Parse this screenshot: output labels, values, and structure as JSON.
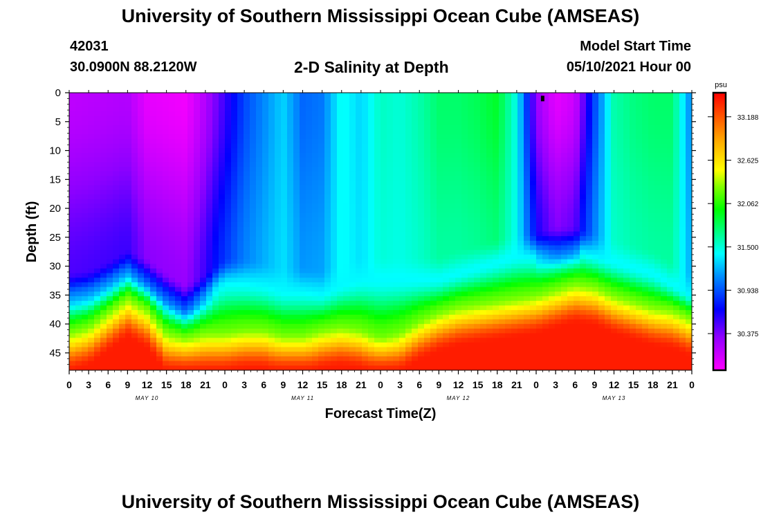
{
  "header": {
    "title": "University of Southern Mississippi Ocean Cube (AMSEAS)",
    "station_id": "42031",
    "location": "30.0900N  88.2120W",
    "plot_title": "2-D Salinity at Depth",
    "model_start_label": "Model Start Time",
    "model_start_value": "05/10/2021 Hour 00"
  },
  "footer": {
    "title": "University of Southern Mississippi Ocean Cube (AMSEAS)"
  },
  "chart_data": {
    "type": "heatmap",
    "title": "2-D Salinity at Depth",
    "xlabel": "Forecast Time(Z)",
    "ylabel": "Depth (ft)",
    "x_unit": "hours since model start",
    "xlim": [
      0,
      96
    ],
    "ylim": [
      0,
      48
    ],
    "y_inverted": true,
    "x_ticks": [
      0,
      3,
      6,
      9,
      12,
      15,
      18,
      21,
      24,
      27,
      30,
      33,
      36,
      39,
      42,
      45,
      48,
      51,
      54,
      57,
      60,
      63,
      66,
      69,
      72,
      75,
      78,
      81,
      84,
      87,
      90,
      93,
      96
    ],
    "x_tick_labels": [
      "0",
      "3",
      "6",
      "9",
      "12",
      "15",
      "18",
      "21",
      "0",
      "3",
      "6",
      "9",
      "12",
      "15",
      "18",
      "21",
      "0",
      "3",
      "6",
      "9",
      "12",
      "15",
      "18",
      "21",
      "0",
      "3",
      "6",
      "9",
      "12",
      "15",
      "18",
      "21",
      "0"
    ],
    "date_labels": [
      {
        "text": "MAY 10",
        "at": 12
      },
      {
        "text": "MAY 11",
        "at": 36
      },
      {
        "text": "MAY 12",
        "at": 60
      },
      {
        "text": "MAY 13",
        "at": 84
      }
    ],
    "y_ticks": [
      0,
      5,
      10,
      15,
      20,
      25,
      30,
      35,
      40,
      45
    ],
    "y_tick_labels": [
      "0",
      "5",
      "10",
      "15",
      "20",
      "25",
      "30",
      "35",
      "40",
      "45"
    ],
    "colorbar": {
      "unit": "psu",
      "range": [
        29.9,
        33.5
      ],
      "tick_values": [
        33.188,
        32.625,
        32.062,
        31.5,
        30.938,
        30.375
      ],
      "tick_labels": [
        "33.188",
        "32.625",
        "32.062",
        "31.500",
        "30.938",
        "30.375"
      ]
    },
    "surface_salinity": {
      "x": [
        0,
        9,
        12,
        18,
        21,
        24,
        27,
        30,
        33,
        36,
        39,
        42,
        45,
        48,
        51,
        54,
        57,
        60,
        63,
        66,
        69,
        72,
        75,
        78,
        81,
        84,
        87,
        90,
        93,
        96
      ],
      "values": [
        30.15,
        30.2,
        30.0,
        29.95,
        30.2,
        30.55,
        30.9,
        31.1,
        31.3,
        31.0,
        31.05,
        31.45,
        31.3,
        31.55,
        31.5,
        31.6,
        31.75,
        31.75,
        31.8,
        31.9,
        31.45,
        30.3,
        30.0,
        30.1,
        30.9,
        31.6,
        31.7,
        31.75,
        31.75,
        31.05
      ]
    },
    "upper_layer_bottom_depth": {
      "x": [
        0,
        3,
        6,
        9,
        12,
        15,
        18,
        21,
        24,
        27,
        30,
        33,
        36,
        39,
        42,
        45,
        48,
        51,
        54,
        57,
        60,
        63,
        66,
        69,
        72,
        75,
        78,
        81,
        84,
        87,
        90,
        93,
        96
      ],
      "values": [
        33,
        32.5,
        31,
        29,
        30.5,
        33,
        35,
        33,
        30.5,
        30.5,
        31,
        32,
        32,
        32.5,
        31,
        30,
        30,
        30,
        30,
        30,
        29,
        28,
        27,
        26,
        26,
        25,
        25,
        26,
        27,
        28,
        29,
        31,
        33
      ]
    },
    "bottom_layer_top_depth": {
      "x": [
        0,
        3,
        6,
        9,
        12,
        15,
        18,
        21,
        24,
        27,
        30,
        33,
        36,
        39,
        42,
        45,
        48,
        51,
        54,
        57,
        60,
        63,
        66,
        69,
        72,
        75,
        78,
        81,
        84,
        87,
        90,
        93,
        96
      ],
      "values": [
        41.5,
        40.5,
        38,
        35.5,
        37.5,
        41.5,
        42.5,
        41.5,
        41.5,
        41,
        41,
        42,
        42,
        41,
        40.5,
        41,
        42.5,
        41.5,
        39.5,
        38,
        37,
        36.5,
        36,
        35.5,
        35,
        34,
        33,
        33.5,
        35,
        36,
        37,
        37.5,
        39
      ]
    },
    "annotations": [
      {
        "type": "marker",
        "x": 73,
        "y": 1
      }
    ]
  }
}
